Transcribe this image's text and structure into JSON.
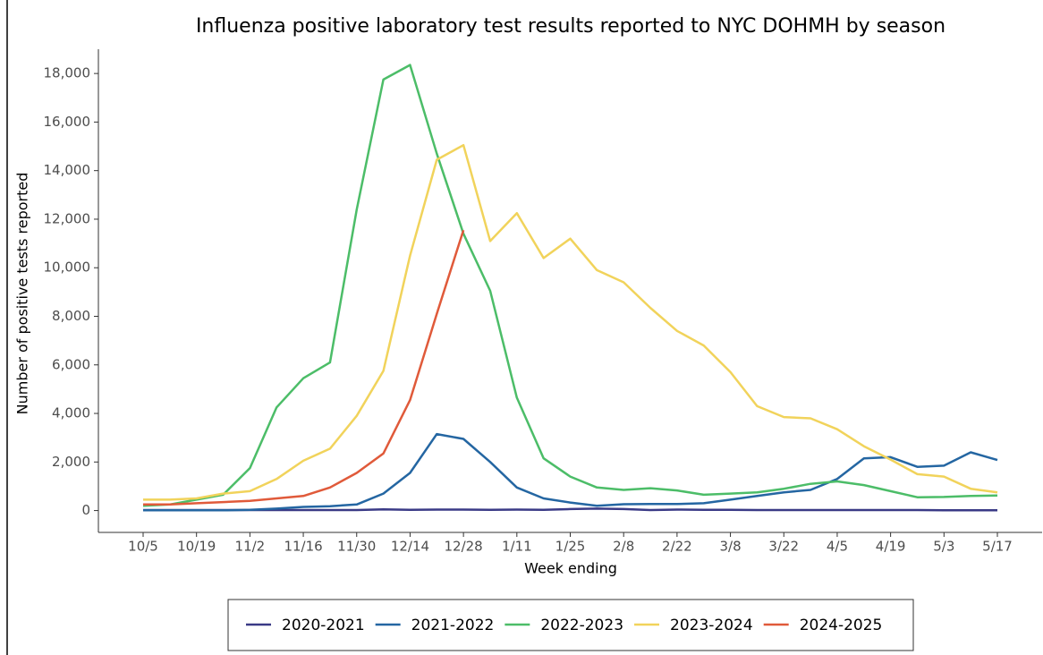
{
  "chart_data": {
    "type": "line",
    "title": "Influenza positive laboratory test results reported to NYC DOHMH by season",
    "x_label": "Week ending",
    "y_label": "Number of positive tests reported",
    "categories": [
      "10/5",
      null,
      "10/19",
      null,
      "11/2",
      null,
      "11/16",
      null,
      "11/30",
      null,
      "12/14",
      null,
      "12/28",
      null,
      "1/11",
      null,
      "1/25",
      null,
      "2/8",
      null,
      "2/22",
      null,
      "3/8",
      null,
      "3/22",
      null,
      "4/5",
      null,
      "4/19",
      null,
      "5/3",
      null,
      "5/17"
    ],
    "ylim": [
      -900,
      19000
    ],
    "yticks": [
      0,
      {
        "value": 2000,
        "label": "2,000"
      },
      {
        "value": 4000,
        "label": "4,000"
      },
      {
        "value": 6000,
        "label": "6,000"
      },
      {
        "value": 8000,
        "label": "8,000"
      },
      {
        "value": 10000,
        "label": "10,000"
      },
      {
        "value": 12000,
        "label": "12,000"
      },
      {
        "value": 14000,
        "label": "14,000"
      },
      {
        "value": 16000,
        "label": "16,000"
      },
      {
        "value": 18000,
        "label": "18,000"
      }
    ],
    "grid": false,
    "legend_position": "bottom",
    "series": [
      {
        "name": "2020-2021",
        "color": "#3a3a86",
        "values": [
          20,
          20,
          20,
          20,
          20,
          20,
          20,
          20,
          20,
          50,
          30,
          40,
          40,
          30,
          40,
          30,
          60,
          80,
          60,
          20,
          40,
          30,
          30,
          20,
          20,
          20,
          20,
          20,
          20,
          20,
          10,
          10,
          10
        ]
      },
      {
        "name": "2021-2022",
        "color": "#2466a2",
        "values": [
          10,
          10,
          10,
          10,
          30,
          80,
          150,
          180,
          250,
          700,
          1550,
          3150,
          2950,
          2000,
          950,
          500,
          330,
          200,
          260,
          270,
          270,
          300,
          450,
          600,
          750,
          850,
          1300,
          2150,
          2200,
          1800,
          1850,
          2400,
          2080
        ]
      },
      {
        "name": "2022-2023",
        "color": "#4cbd68",
        "values": [
          200,
          250,
          450,
          650,
          1750,
          4250,
          5450,
          6100,
          12400,
          17750,
          18350,
          14700,
          11400,
          9050,
          4650,
          2150,
          1400,
          950,
          850,
          920,
          830,
          650,
          700,
          750,
          900,
          1100,
          1200,
          1050,
          800,
          550,
          560,
          600,
          620
        ]
      },
      {
        "name": "2023-2024",
        "color": "#f1d35b",
        "values": [
          450,
          450,
          500,
          700,
          800,
          1300,
          2050,
          2550,
          3900,
          5750,
          10500,
          14450,
          15050,
          11100,
          12250,
          10400,
          11200,
          9900,
          9400,
          8350,
          7400,
          6800,
          5700,
          4300,
          3850,
          3800,
          3350,
          2650,
          2100,
          1500,
          1400,
          900,
          750
        ]
      },
      {
        "name": "2024-2025",
        "color": "#e05a3a",
        "values": [
          250,
          250,
          300,
          350,
          400,
          500,
          600,
          950,
          1550,
          2350,
          4550,
          8100,
          11550,
          null,
          null,
          null,
          null,
          null,
          null,
          null,
          null,
          null,
          null,
          null,
          null,
          null,
          null,
          null,
          null,
          null,
          null,
          null,
          null
        ]
      }
    ]
  }
}
